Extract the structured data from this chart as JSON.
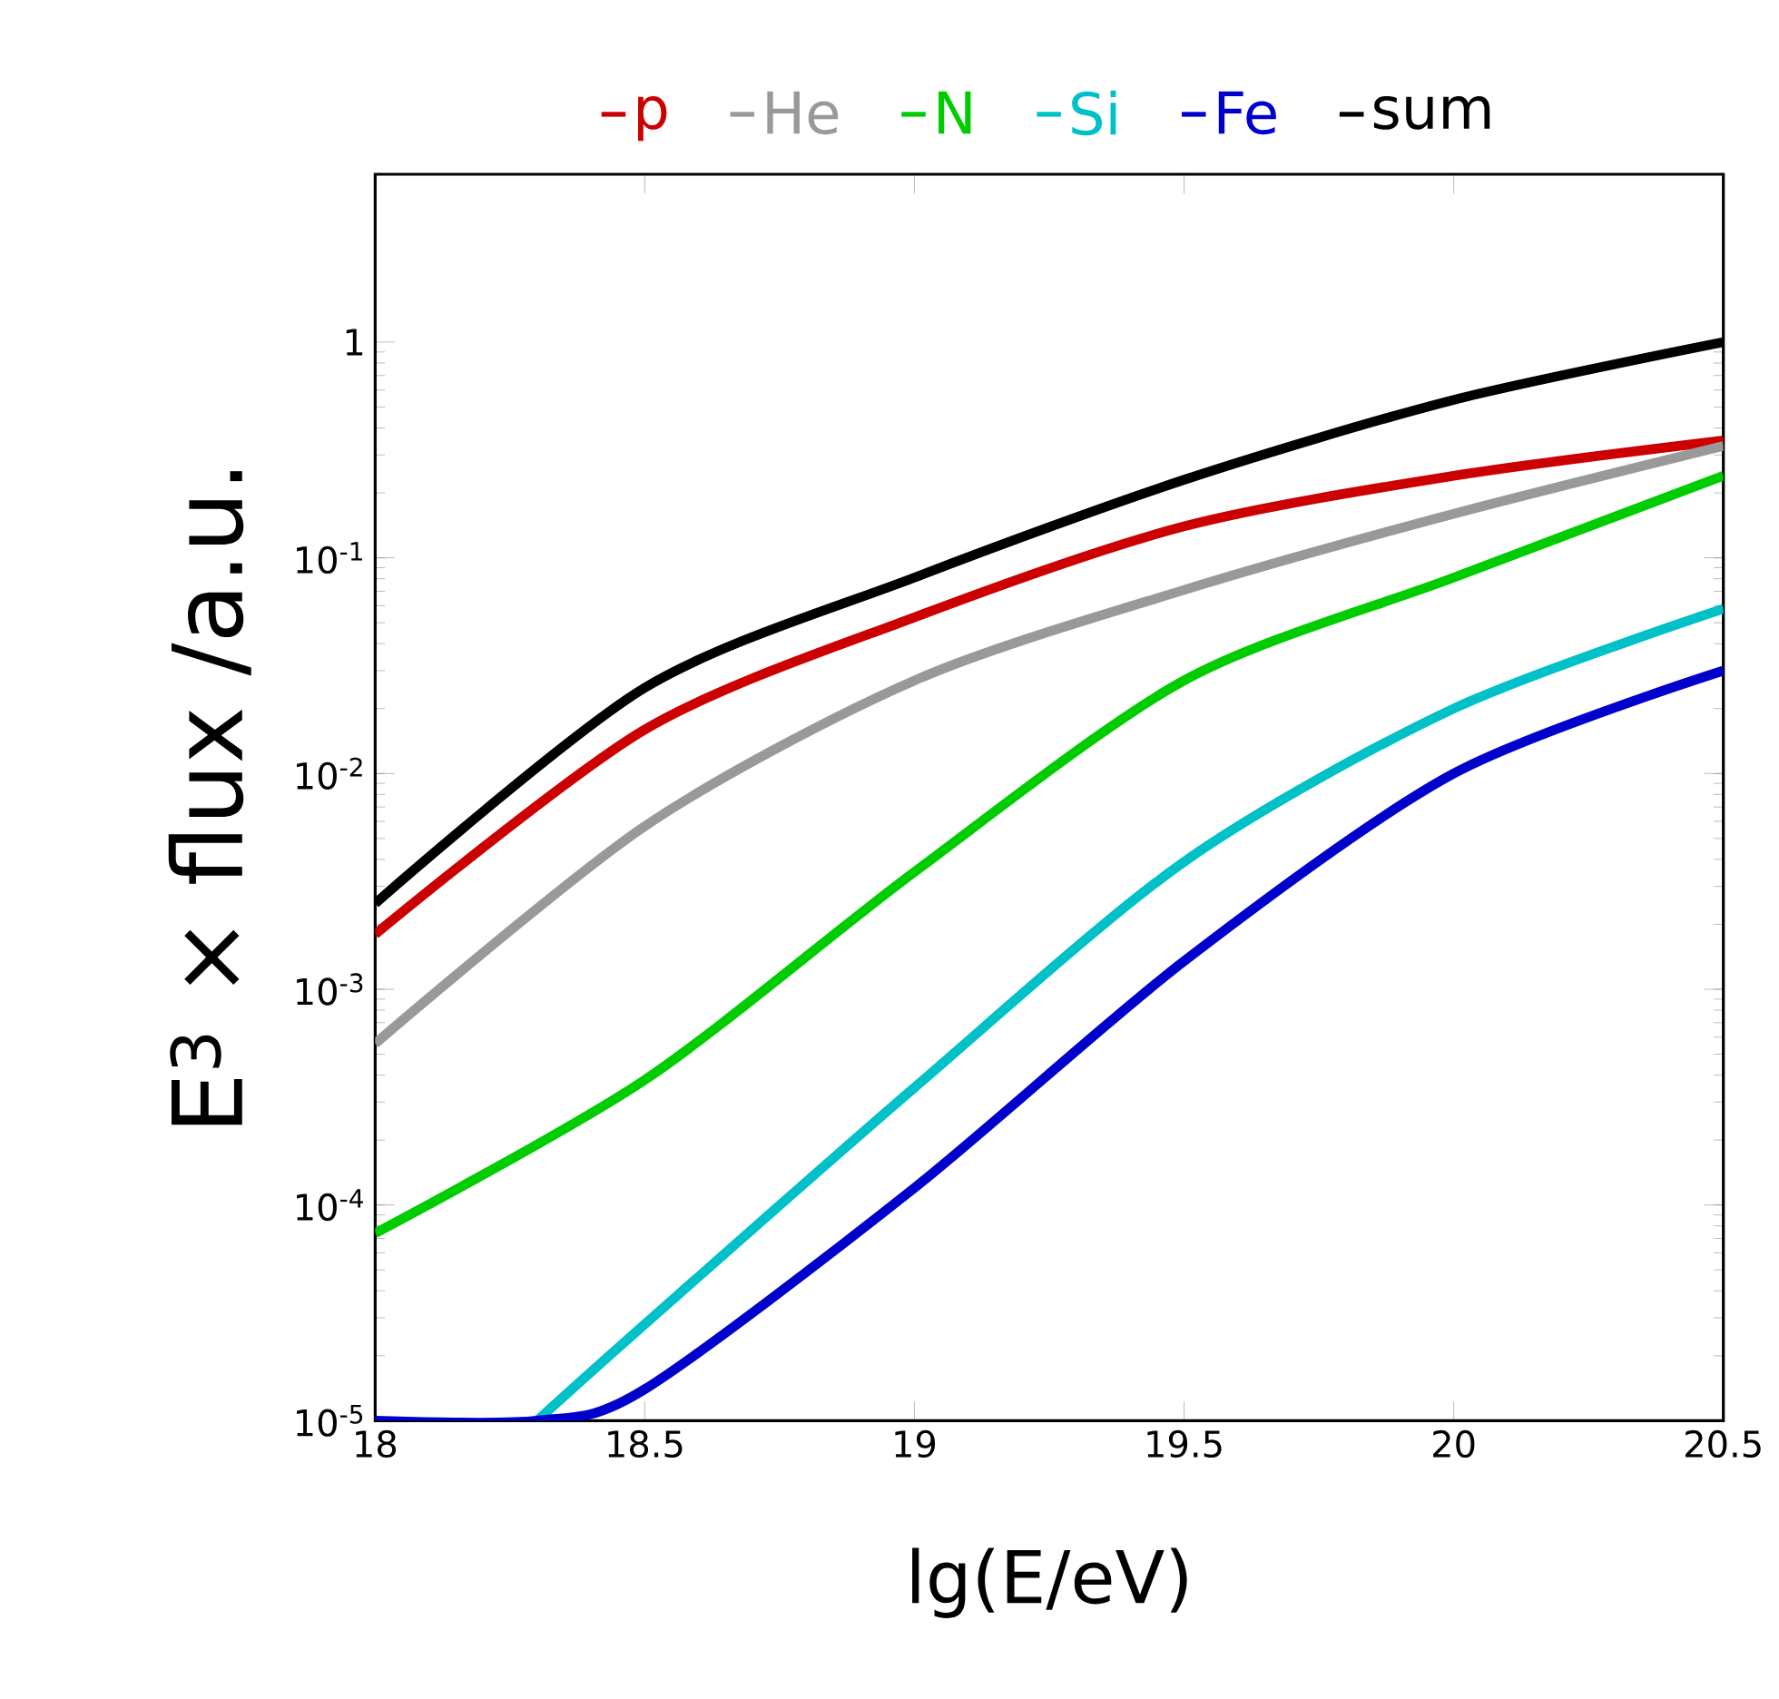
{
  "chart_data": {
    "type": "line",
    "xlabel": "lg(E/eV)",
    "ylabel": "E$^{3}$ × flux /a.u.",
    "xlim": [
      18,
      20.5
    ],
    "xticks": [
      18,
      18.5,
      19,
      19.5,
      20,
      20.5
    ],
    "ylim": [
      1e-05,
      6
    ],
    "log": "y",
    "yticks": [
      {
        "value": 1e-05,
        "label": "10$^{-5}$"
      },
      {
        "value": 0.0001,
        "label": "10$^{-4}$"
      },
      {
        "value": 0.001,
        "label": "10$^{-3}$"
      },
      {
        "value": 0.01,
        "label": "10$^{-2}$"
      },
      {
        "value": 0.1,
        "label": "10$^{-1}$"
      },
      {
        "value": 1,
        "label": "1"
      }
    ],
    "legend": "top",
    "grid": false,
    "marker": "none",
    "line_style": "solid",
    "series": [
      {
        "name": "p",
        "color": "#cc0000",
        "x": [
          18,
          18.5,
          19,
          19.5,
          20,
          20.5
        ],
        "values": [
          0.0018,
          0.016,
          0.053,
          0.14,
          0.24,
          0.35
        ]
      },
      {
        "name": "He",
        "color": "#999999",
        "x": [
          18,
          18.5,
          19,
          19.5,
          20,
          20.5
        ],
        "values": [
          0.00056,
          0.0057,
          0.027,
          0.071,
          0.16,
          0.33
        ]
      },
      {
        "name": "N",
        "color": "#00cc00",
        "x": [
          18,
          18.5,
          19,
          19.5,
          20,
          20.5
        ],
        "values": [
          7.4e-05,
          0.00038,
          0.0035,
          0.027,
          0.081,
          0.24
        ]
      },
      {
        "name": "Si",
        "color": "#00c0c8",
        "x": [
          18.3,
          18.5,
          19,
          19.5,
          20,
          20.5
        ],
        "values": [
          1e-05,
          2.8e-05,
          0.00035,
          0.0039,
          0.02,
          0.058
        ]
      },
      {
        "name": "Fe",
        "color": "#0000cc",
        "x": [
          18,
          18.3,
          18.5,
          19,
          19.5,
          20,
          20.5
        ],
        "values": [
          1e-05,
          1e-05,
          1.4e-05,
          0.00012,
          0.00135,
          0.01,
          0.03
        ]
      },
      {
        "name": "sum",
        "color": "#000000",
        "x": [
          18,
          18.5,
          19,
          19.5,
          20,
          20.5
        ],
        "values": [
          0.0025,
          0.025,
          0.081,
          0.23,
          0.54,
          1.0
        ]
      }
    ]
  }
}
